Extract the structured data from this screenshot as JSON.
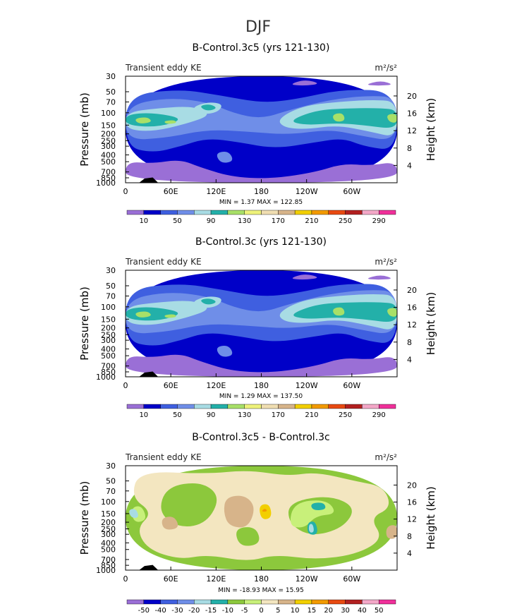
{
  "page": {
    "title": "DJF"
  },
  "colors": {
    "background": "#ffffff",
    "axis": "#000000",
    "palette_abs": [
      "#9a6fd6",
      "#0000c8",
      "#3f5fe0",
      "#6f8ee8",
      "#a8dce4",
      "#23b0a9",
      "#a8e068",
      "#eef27a",
      "#f0deb2",
      "#d7b48a",
      "#f2cf00",
      "#f29a00",
      "#e84a12",
      "#b22020",
      "#f3a8c8",
      "#f0309a"
    ],
    "palette_diff": [
      "#9a6fd6",
      "#0000c8",
      "#3f5fe0",
      "#6f8ee8",
      "#a8dce4",
      "#23b0a9",
      "#8cc83c",
      "#c8f07a",
      "#f3e6c0",
      "#d7b48a",
      "#f2cf00",
      "#f29a00",
      "#e84a12",
      "#b22020",
      "#f3a8c8",
      "#f0309a"
    ]
  },
  "chart_data": [
    {
      "type": "heatmap",
      "title": "B-Control.3c5 (yrs 121-130)",
      "left_label": "Transient eddy KE",
      "units": "m²/s²",
      "xlabel": "",
      "ylabel": "Pressure (mb)",
      "ylabel_right": "Height (km)",
      "x_ticks": [
        "0",
        "60E",
        "120E",
        "180",
        "120W",
        "60W"
      ],
      "x_tick_values": [
        0,
        60,
        120,
        180,
        240,
        300
      ],
      "xlim": [
        0,
        360
      ],
      "y_ticks": [
        "30",
        "50",
        "70",
        "100",
        "150",
        "200",
        "250",
        "300",
        "400",
        "500",
        "700",
        "850",
        "1000"
      ],
      "y_tick_values": [
        30,
        50,
        70,
        100,
        150,
        200,
        250,
        300,
        400,
        500,
        700,
        850,
        1000
      ],
      "ylim": [
        30,
        1000
      ],
      "height_ticks": [
        "20",
        "16",
        "12",
        "8",
        "4"
      ],
      "height_tick_values": [
        20,
        16,
        12,
        8,
        4
      ],
      "stats": "MIN =     1.37   MAX =  122.85",
      "field": "abs",
      "colorbar_labels": [
        "10",
        "50",
        "90",
        "130",
        "170",
        "210",
        "250",
        "290"
      ]
    },
    {
      "type": "heatmap",
      "title": "B-Control.3c (yrs 121-130)",
      "left_label": "Transient eddy KE",
      "units": "m²/s²",
      "xlabel": "",
      "ylabel": "Pressure (mb)",
      "ylabel_right": "Height (km)",
      "x_ticks": [
        "0",
        "60E",
        "120E",
        "180",
        "120W",
        "60W"
      ],
      "x_tick_values": [
        0,
        60,
        120,
        180,
        240,
        300
      ],
      "xlim": [
        0,
        360
      ],
      "y_ticks": [
        "30",
        "50",
        "70",
        "100",
        "150",
        "200",
        "250",
        "300",
        "400",
        "500",
        "700",
        "850",
        "1000"
      ],
      "y_tick_values": [
        30,
        50,
        70,
        100,
        150,
        200,
        250,
        300,
        400,
        500,
        700,
        850,
        1000
      ],
      "ylim": [
        30,
        1000
      ],
      "height_ticks": [
        "20",
        "16",
        "12",
        "8",
        "4"
      ],
      "height_tick_values": [
        20,
        16,
        12,
        8,
        4
      ],
      "stats": "MIN =     1.29   MAX =  137.50",
      "field": "abs",
      "colorbar_labels": [
        "10",
        "50",
        "90",
        "130",
        "170",
        "210",
        "250",
        "290"
      ]
    },
    {
      "type": "heatmap",
      "title": "B-Control.3c5 - B-Control.3c",
      "left_label": "Transient eddy KE",
      "units": "m²/s²",
      "xlabel": "",
      "ylabel": "Pressure (mb)",
      "ylabel_right": "Height (km)",
      "x_ticks": [
        "0",
        "60E",
        "120E",
        "180",
        "120W",
        "60W"
      ],
      "x_tick_values": [
        0,
        60,
        120,
        180,
        240,
        300
      ],
      "xlim": [
        0,
        360
      ],
      "y_ticks": [
        "30",
        "50",
        "70",
        "100",
        "150",
        "200",
        "250",
        "300",
        "400",
        "500",
        "700",
        "850",
        "1000"
      ],
      "y_tick_values": [
        30,
        50,
        70,
        100,
        150,
        200,
        250,
        300,
        400,
        500,
        700,
        850,
        1000
      ],
      "ylim": [
        30,
        1000
      ],
      "height_ticks": [
        "20",
        "16",
        "12",
        "8",
        "4"
      ],
      "height_tick_values": [
        20,
        16,
        12,
        8,
        4
      ],
      "stats": "MIN =  -18.93   MAX =   15.95",
      "field": "diff",
      "colorbar_labels": [
        "-50",
        "-40",
        "-30",
        "-20",
        "-15",
        "-10",
        "-5",
        "0",
        "5",
        "10",
        "15",
        "20",
        "30",
        "40",
        "50"
      ]
    }
  ]
}
